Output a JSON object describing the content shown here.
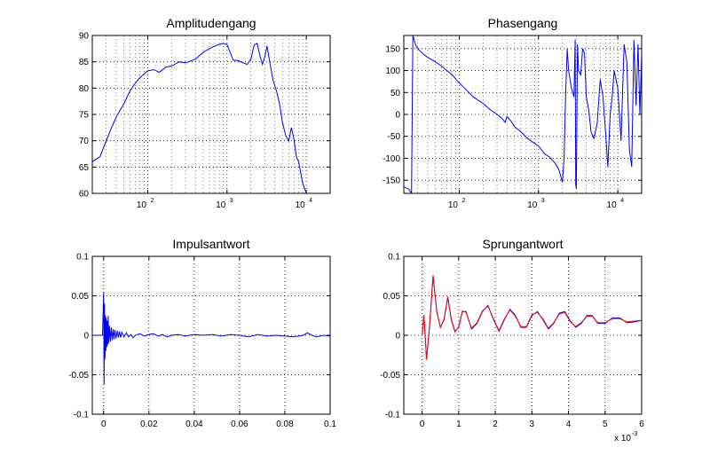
{
  "chart_data": [
    {
      "type": "line",
      "title": "Amplitudengang",
      "xscale": "log",
      "xlim": [
        20,
        20000
      ],
      "ylim": [
        60,
        90
      ],
      "xticks": [
        100,
        1000,
        10000
      ],
      "xtick_labels": [
        {
          "base": "10",
          "exp": "2"
        },
        {
          "base": "10",
          "exp": "3"
        },
        {
          "base": "10",
          "exp": "4"
        }
      ],
      "yticks": [
        60,
        65,
        70,
        75,
        80,
        85,
        90
      ],
      "ytick_labels": [
        "60",
        "65",
        "70",
        "75",
        "80",
        "85",
        "90"
      ],
      "grid": true,
      "series": [
        {
          "color": "#0000ff",
          "x": [
            20,
            25,
            30,
            35,
            40,
            50,
            60,
            70,
            80,
            100,
            120,
            140,
            170,
            200,
            250,
            300,
            400,
            500,
            600,
            700,
            800,
            900,
            1000,
            1200,
            1400,
            1600,
            1800,
            2000,
            2200,
            2400,
            2600,
            2800,
            3000,
            3200,
            3500,
            3800,
            4200,
            4600,
            5000,
            5500,
            6000,
            6500,
            7000,
            7500,
            8000,
            9000,
            10000
          ],
          "y": [
            66,
            67,
            70,
            72.5,
            74.5,
            77,
            79.5,
            81,
            82,
            83.3,
            83.5,
            83,
            84,
            84.2,
            85,
            84.8,
            85.5,
            86.8,
            87.5,
            88,
            88.3,
            88.5,
            88.3,
            85.3,
            85.2,
            84.8,
            84.5,
            85.5,
            88.2,
            88.5,
            86.2,
            84.5,
            86,
            88,
            84.5,
            81.5,
            79.5,
            77,
            73.5,
            71,
            70,
            72.5,
            70.2,
            67,
            66,
            62,
            60
          ]
        }
      ]
    },
    {
      "type": "line",
      "title": "Phasengang",
      "xscale": "log",
      "xlim": [
        20,
        20000
      ],
      "ylim": [
        -180,
        180
      ],
      "xticks": [
        100,
        1000,
        10000
      ],
      "xtick_labels": [
        {
          "base": "10",
          "exp": "2"
        },
        {
          "base": "10",
          "exp": "3"
        },
        {
          "base": "10",
          "exp": "4"
        }
      ],
      "yticks": [
        -150,
        -100,
        -50,
        0,
        50,
        100,
        150
      ],
      "ytick_labels": [
        "-150",
        "-100",
        "-50",
        "0",
        "50",
        "100",
        "150"
      ],
      "grid": true,
      "series": [
        {
          "color": "#0000ff",
          "x": [
            20,
            23,
            25,
            26,
            27,
            28,
            30,
            35,
            40,
            50,
            60,
            70,
            80,
            100,
            120,
            150,
            200,
            250,
            300,
            350,
            380,
            400,
            450,
            500,
            600,
            700,
            800,
            1000,
            1200,
            1400,
            1600,
            1800,
            2000,
            2100,
            2200,
            2300,
            2400,
            2500,
            2600,
            2800,
            2900,
            2950,
            3000,
            3100,
            3200,
            3400,
            3600,
            3800,
            4000,
            4300,
            4600,
            5000,
            5500,
            6000,
            6500,
            7000,
            7500,
            8000,
            8500,
            9000,
            10000,
            11000,
            12000,
            13000,
            14000,
            15000,
            16000,
            17000,
            18000,
            19000,
            20000
          ],
          "y": [
            -165,
            -170,
            -180,
            180,
            170,
            160,
            150,
            138,
            130,
            120,
            110,
            100,
            92,
            72,
            58,
            40,
            25,
            10,
            0,
            -10,
            -18,
            -5,
            -15,
            -28,
            -40,
            -52,
            -60,
            -72,
            -90,
            -98,
            -110,
            -125,
            -155,
            -100,
            50,
            150,
            100,
            80,
            60,
            40,
            170,
            -160,
            -170,
            160,
            100,
            90,
            150,
            140,
            40,
            10,
            -40,
            -55,
            -20,
            80,
            40,
            -40,
            -120,
            0,
            40,
            100,
            60,
            -60,
            160,
            120,
            -80,
            -120,
            170,
            20,
            160,
            0,
            140
          ]
        }
      ]
    },
    {
      "type": "line",
      "title": "Impulsantwort",
      "xscale": "linear",
      "xlim": [
        -0.005,
        0.1
      ],
      "ylim": [
        -0.1,
        0.1
      ],
      "xticks": [
        0,
        0.02,
        0.04,
        0.06,
        0.08,
        0.1
      ],
      "xtick_labels": [
        "0",
        "0.02",
        "0.04",
        "0.06",
        "0.08",
        "0.1"
      ],
      "yticks": [
        -0.1,
        -0.05,
        0,
        0.05,
        0.1
      ],
      "ytick_labels": [
        "-0.1",
        "-0.05",
        "0",
        "0.05",
        "0.1"
      ],
      "grid": true,
      "series": [
        {
          "color": "#0000ff",
          "x": [
            -0.005,
            -0.0005,
            0,
            0.0002,
            0.0004,
            0.0006,
            0.0008,
            0.001,
            0.0012,
            0.0014,
            0.0016,
            0.0018,
            0.002,
            0.0023,
            0.0026,
            0.003,
            0.0034,
            0.0038,
            0.0042,
            0.0046,
            0.005,
            0.0055,
            0.006,
            0.0065,
            0.007,
            0.0075,
            0.008,
            0.009,
            0.01,
            0.011,
            0.012,
            0.013,
            0.014,
            0.016,
            0.018,
            0.02,
            0.022,
            0.024,
            0.026,
            0.028,
            0.03,
            0.033,
            0.036,
            0.04,
            0.044,
            0.048,
            0.052,
            0.056,
            0.06,
            0.064,
            0.068,
            0.072,
            0.076,
            0.08,
            0.084,
            0.088,
            0.09,
            0.092,
            0.094,
            0.097,
            0.1
          ],
          "y": [
            0,
            0,
            0.055,
            -0.062,
            0.04,
            -0.03,
            0.025,
            -0.02,
            0.022,
            -0.015,
            0.018,
            -0.012,
            0.025,
            -0.01,
            0.012,
            -0.008,
            0.01,
            -0.006,
            0.008,
            -0.005,
            0.007,
            -0.004,
            0.006,
            -0.003,
            0.005,
            -0.003,
            0.004,
            -0.002,
            0.003,
            -0.002,
            0.001,
            -0.003,
            0.0,
            0.002,
            -0.001,
            0.001,
            0.002,
            -0.001,
            0.001,
            -0.002,
            0.0,
            0.001,
            -0.001,
            0.001,
            0.0,
            0.001,
            -0.001,
            0.001,
            0.0,
            -0.002,
            0.001,
            -0.001,
            0.0,
            -0.001,
            -0.002,
            0.0,
            0.003,
            0.0,
            -0.002,
            0.0,
            -0.001
          ]
        }
      ]
    },
    {
      "type": "line",
      "title": "Sprungantwort",
      "xscale": "linear",
      "xlim": [
        -0.5,
        6
      ],
      "ylim": [
        -0.1,
        0.1
      ],
      "xticks": [
        0,
        1,
        2,
        3,
        4,
        5,
        6
      ],
      "xtick_labels": [
        "0",
        "1",
        "2",
        "3",
        "4",
        "5",
        "6"
      ],
      "yticks": [
        -0.1,
        -0.05,
        0,
        0.05,
        0.1
      ],
      "ytick_labels": [
        "-0.1",
        "-0.05",
        "0",
        "0.05",
        "0.1"
      ],
      "x_multiplier": {
        "prefix": "x 10",
        "exp": "-3"
      },
      "grid": true,
      "series": [
        {
          "color": "#0000ff",
          "x": [
            0,
            0.05,
            0.12,
            0.2,
            0.3,
            0.4,
            0.5,
            0.6,
            0.7,
            0.8,
            0.9,
            1.0,
            1.1,
            1.2,
            1.35,
            1.5,
            1.65,
            1.8,
            1.95,
            2.1,
            2.25,
            2.4,
            2.55,
            2.7,
            2.85,
            3.0,
            3.15,
            3.3,
            3.45,
            3.6,
            3.75,
            3.9,
            4.05,
            4.2,
            4.35,
            4.5,
            4.65,
            4.8,
            5.0,
            5.2,
            5.4,
            5.6,
            5.8,
            6.0
          ],
          "y": [
            0,
            0.025,
            -0.03,
            0.01,
            0.075,
            0.03,
            0.01,
            0.02,
            0.048,
            0.02,
            0.005,
            0.01,
            0.03,
            0.03,
            0.008,
            0.015,
            0.03,
            0.038,
            0.02,
            0.005,
            0.02,
            0.033,
            0.025,
            0.01,
            0.01,
            0.025,
            0.03,
            0.02,
            0.008,
            0.015,
            0.028,
            0.03,
            0.018,
            0.01,
            0.015,
            0.025,
            0.025,
            0.015,
            0.015,
            0.022,
            0.022,
            0.016,
            0.017,
            0.019
          ]
        },
        {
          "color": "#ff0000",
          "x": [
            0,
            0.05,
            0.12,
            0.2,
            0.3,
            0.4,
            0.5,
            0.6,
            0.7,
            0.8,
            0.9,
            1.0,
            1.1,
            1.2,
            1.35,
            1.5,
            1.65,
            1.8,
            1.95,
            2.1,
            2.25,
            2.4,
            2.55,
            2.7,
            2.85,
            3.0,
            3.15,
            3.3,
            3.45,
            3.6,
            3.75,
            3.9,
            4.05,
            4.2,
            4.35,
            4.5,
            4.65,
            4.8,
            5.0,
            5.2,
            5.4,
            5.6,
            5.8,
            6.0
          ],
          "y": [
            0,
            0.026,
            -0.031,
            0.011,
            0.076,
            0.031,
            0.01,
            0.021,
            0.049,
            0.019,
            0.004,
            0.011,
            0.031,
            0.029,
            0.009,
            0.016,
            0.031,
            0.037,
            0.021,
            0.006,
            0.021,
            0.032,
            0.024,
            0.011,
            0.011,
            0.026,
            0.029,
            0.021,
            0.009,
            0.016,
            0.027,
            0.029,
            0.017,
            0.011,
            0.016,
            0.024,
            0.024,
            0.016,
            0.016,
            0.021,
            0.021,
            0.017,
            0.018,
            0.019
          ]
        }
      ]
    }
  ]
}
